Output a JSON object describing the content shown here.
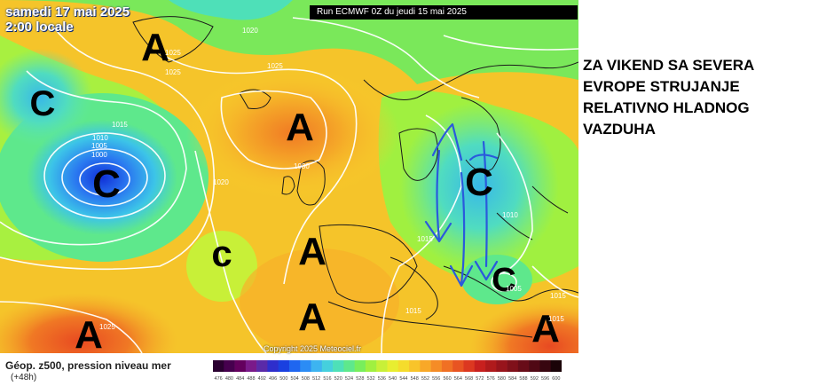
{
  "header": {
    "date_line": "samedi 17 mai 2025",
    "time_line": "2:00 locale",
    "run_label": "Run ECMWF 0Z du jeudi 15 mai 2025"
  },
  "copyright": "Copyright 2025 Meteociel.fr",
  "annotation": {
    "lines": [
      "ZA VIKEND SA SEVERA",
      "EVROPE STRUJANJE",
      "RELATIVNO HLADNOG",
      "VAZDUHA"
    ]
  },
  "caption": {
    "title": "Géop. z500, pression niveau mer",
    "lead": "(+48h)"
  },
  "pressure_centers": [
    {
      "label": "A"
    },
    {
      "label": "C"
    },
    {
      "label": "C"
    },
    {
      "label": "A"
    },
    {
      "label": "c"
    },
    {
      "label": "A"
    },
    {
      "label": "A"
    },
    {
      "label": "A"
    },
    {
      "label": "C"
    },
    {
      "label": "C"
    },
    {
      "label": "A"
    }
  ],
  "isobar_labels": [
    "1020",
    "1025",
    "1025",
    "1025",
    "1015",
    "1010",
    "1005",
    "1000",
    "1020",
    "1030",
    "1015",
    "1010",
    "1005",
    "1015",
    "1015",
    "1015",
    "1025"
  ],
  "scale": {
    "colors": [
      "#2a0030",
      "#46004e",
      "#64005e",
      "#7a1a8a",
      "#5a2aa8",
      "#2e2ecc",
      "#1a40e0",
      "#1f66f0",
      "#2b8cf5",
      "#3db4f0",
      "#45d0dd",
      "#4ee0b8",
      "#5ee88c",
      "#78ee5c",
      "#a0f040",
      "#c8f038",
      "#e8ee30",
      "#f5dc2c",
      "#f8c42a",
      "#f8a828",
      "#f58c26",
      "#f07024",
      "#e85422",
      "#dc3820",
      "#c8201e",
      "#b01a1c",
      "#98141c",
      "#80101a",
      "#680c18",
      "#500814",
      "#380610",
      "#1a0308"
    ],
    "labels": [
      "476",
      "480",
      "484",
      "488",
      "492",
      "496",
      "500",
      "504",
      "508",
      "512",
      "516",
      "520",
      "524",
      "528",
      "532",
      "536",
      "540",
      "544",
      "548",
      "552",
      "556",
      "560",
      "564",
      "568",
      "572",
      "576",
      "580",
      "584",
      "588",
      "592",
      "596",
      "600"
    ]
  }
}
